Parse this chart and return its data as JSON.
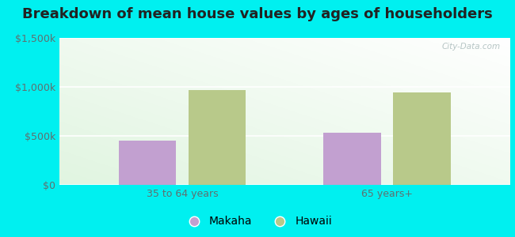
{
  "title": "Breakdown of mean house values by ages of householders",
  "categories": [
    "35 to 64 years",
    "65 years+"
  ],
  "series": [
    {
      "label": "Makaha",
      "values": [
        450000,
        530000
      ],
      "color": "#c2a0d0"
    },
    {
      "label": "Hawaii",
      "values": [
        970000,
        940000
      ],
      "color": "#b8c98a"
    }
  ],
  "ylim": [
    0,
    1500000
  ],
  "yticks": [
    0,
    500000,
    1000000,
    1500000
  ],
  "ytick_labels": [
    "$0",
    "$500k",
    "$1,000k",
    "$1,500k"
  ],
  "background_color": "#00f0f0",
  "watermark": "City-Data.com",
  "bar_width": 0.28,
  "title_fontsize": 13,
  "tick_fontsize": 9,
  "legend_fontsize": 10
}
